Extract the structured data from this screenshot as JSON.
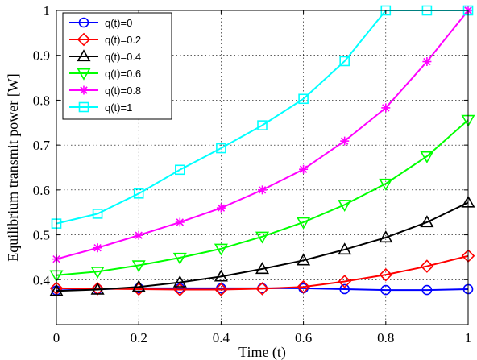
{
  "chart_data": {
    "type": "line",
    "xlabel": "Time (t)",
    "ylabel": "Equilibrium transmit power [W]",
    "xlim": [
      0,
      1
    ],
    "ylim": [
      0.3,
      1.0
    ],
    "xticks": [
      "0",
      "0.2",
      "0.4",
      "0.6",
      "0.8",
      "1"
    ],
    "xtick_values": [
      0,
      0.2,
      0.4,
      0.6,
      0.8,
      1
    ],
    "yticks": [
      "0.4",
      "0.5",
      "0.6",
      "0.7",
      "0.8",
      "0.9",
      "1"
    ],
    "ytick_values": [
      0.4,
      0.5,
      0.6,
      0.7,
      0.8,
      0.9,
      1.0
    ],
    "grid": true,
    "legend_position": "top-left",
    "x": [
      0,
      0.1,
      0.2,
      0.3,
      0.4,
      0.5,
      0.6,
      0.7,
      0.8,
      0.9,
      1.0
    ],
    "series": [
      {
        "name": "q(t)=0",
        "color": "#0000ff",
        "marker": "circle",
        "values": [
          0.376,
          0.379,
          0.381,
          0.381,
          0.381,
          0.381,
          0.381,
          0.379,
          0.377,
          0.377,
          0.379
        ]
      },
      {
        "name": "q(t)=0.2",
        "color": "#ff0000",
        "marker": "diamond",
        "values": [
          0.381,
          0.38,
          0.379,
          0.378,
          0.378,
          0.38,
          0.384,
          0.396,
          0.411,
          0.43,
          0.453
        ]
      },
      {
        "name": "q(t)=0.4",
        "color": "#000000",
        "marker": "triangle-up",
        "values": [
          0.375,
          0.378,
          0.384,
          0.394,
          0.407,
          0.424,
          0.443,
          0.467,
          0.494,
          0.528,
          0.572
        ]
      },
      {
        "name": "q(t)=0.6",
        "color": "#00ff00",
        "marker": "triangle-down",
        "values": [
          0.41,
          0.418,
          0.432,
          0.449,
          0.469,
          0.496,
          0.528,
          0.567,
          0.614,
          0.675,
          0.756
        ]
      },
      {
        "name": "q(t)=0.8",
        "color": "#ff00ff",
        "marker": "star",
        "values": [
          0.446,
          0.471,
          0.499,
          0.528,
          0.56,
          0.6,
          0.646,
          0.709,
          0.783,
          0.886,
          1.0
        ]
      },
      {
        "name": "q(t)=1",
        "color": "#00ffff",
        "marker": "square",
        "values": [
          0.525,
          0.547,
          0.592,
          0.645,
          0.693,
          0.744,
          0.803,
          0.887,
          1.0,
          1.0,
          1.0
        ]
      }
    ]
  }
}
